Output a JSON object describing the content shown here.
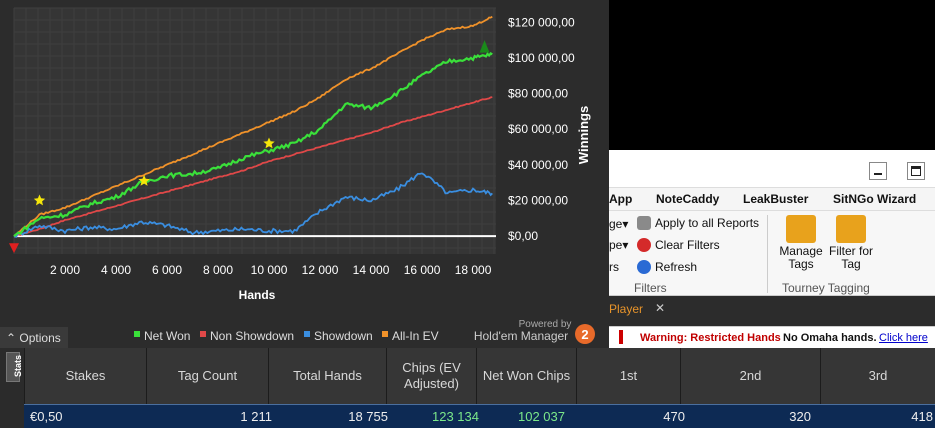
{
  "chart": {
    "y_axis_title": "Winnings",
    "x_axis_title": "Hands",
    "y_ticks": [
      "$120 000,00",
      "$100 000,00",
      "$80 000,00",
      "$60 000,00",
      "$40 000,00",
      "$20 000,00",
      "$0,00"
    ],
    "x_ticks": [
      "2 000",
      "4 000",
      "6 000",
      "8 000",
      "10 000",
      "12 000",
      "14 000",
      "16 000",
      "18 000"
    ],
    "legend": [
      {
        "label": "Net Won",
        "color": "#3ae03a"
      },
      {
        "label": "Non Showdown",
        "color": "#e04848"
      },
      {
        "label": "Showdown",
        "color": "#3a8ee0"
      },
      {
        "label": "All-In EV",
        "color": "#f0922a"
      }
    ],
    "powered_by": "Powered by",
    "brand": "Hold'em Manager",
    "brand_version": "2"
  },
  "chart_data": {
    "type": "line",
    "xlabel": "Hands",
    "ylabel": "Winnings",
    "xlim": [
      0,
      18900
    ],
    "ylim": [
      -10000,
      128000
    ],
    "grid": true,
    "legend_position": "bottom",
    "x": [
      0,
      1000,
      2000,
      3000,
      4000,
      5000,
      6000,
      7000,
      8000,
      9000,
      10000,
      11000,
      12000,
      13000,
      14000,
      15000,
      16000,
      17000,
      18000,
      18755
    ],
    "series": [
      {
        "name": "Net Won",
        "color": "#3ae03a",
        "values": [
          0,
          10000,
          12000,
          18000,
          22000,
          30000,
          34000,
          35000,
          38000,
          44000,
          48000,
          52000,
          60000,
          74000,
          72000,
          80000,
          90000,
          98000,
          100000,
          102037
        ]
      },
      {
        "name": "Non Showdown",
        "color": "#e04848",
        "values": [
          0,
          4000,
          9000,
          13000,
          17000,
          21000,
          25000,
          29000,
          33000,
          37000,
          42000,
          46000,
          50000,
          54000,
          58000,
          63000,
          67000,
          71000,
          75000,
          78000
        ]
      },
      {
        "name": "Showdown",
        "color": "#3a8ee0",
        "values": [
          0,
          6000,
          3000,
          5000,
          4000,
          8000,
          6000,
          2000,
          3000,
          4000,
          3000,
          3000,
          14000,
          22000,
          20000,
          26000,
          36000,
          24000,
          26000,
          24000
        ]
      },
      {
        "name": "All-In EV",
        "color": "#f0922a",
        "values": [
          0,
          12000,
          16000,
          22000,
          28000,
          34000,
          40000,
          46000,
          52000,
          58000,
          64000,
          70000,
          78000,
          88000,
          94000,
          102000,
          110000,
          116000,
          118000,
          123134
        ]
      }
    ]
  },
  "options_label": "Options",
  "window": {
    "ribbon_tabs": [
      "App",
      "NoteCaddy",
      "LeakBuster",
      "SitNGo Wizard"
    ],
    "filters_items": [
      "Apply to all Reports",
      "Clear Filters",
      "Refresh"
    ],
    "filters_group": "Filters",
    "manage_tags": "Manage Tags",
    "filter_for_tag": "Filter for Tag",
    "tourney_group": "Tourney Tagging",
    "partial_left": [
      "ge",
      "pe",
      "rs"
    ],
    "player_tab": "Player",
    "warning": "Warning: Restricted Hands",
    "warning_detail": "No Omaha hands.",
    "warning_link": "Click here"
  },
  "stats": {
    "side_tab": "Stats",
    "headers": [
      "Stakes",
      "Tag Count",
      "Total Hands",
      "Chips (EV Adjusted)",
      "Net Won Chips",
      "1st",
      "2nd",
      "3rd"
    ],
    "row": [
      "€0,50",
      "1 211",
      "18 755",
      "123 134",
      "102 037",
      "470",
      "320",
      "418"
    ]
  }
}
